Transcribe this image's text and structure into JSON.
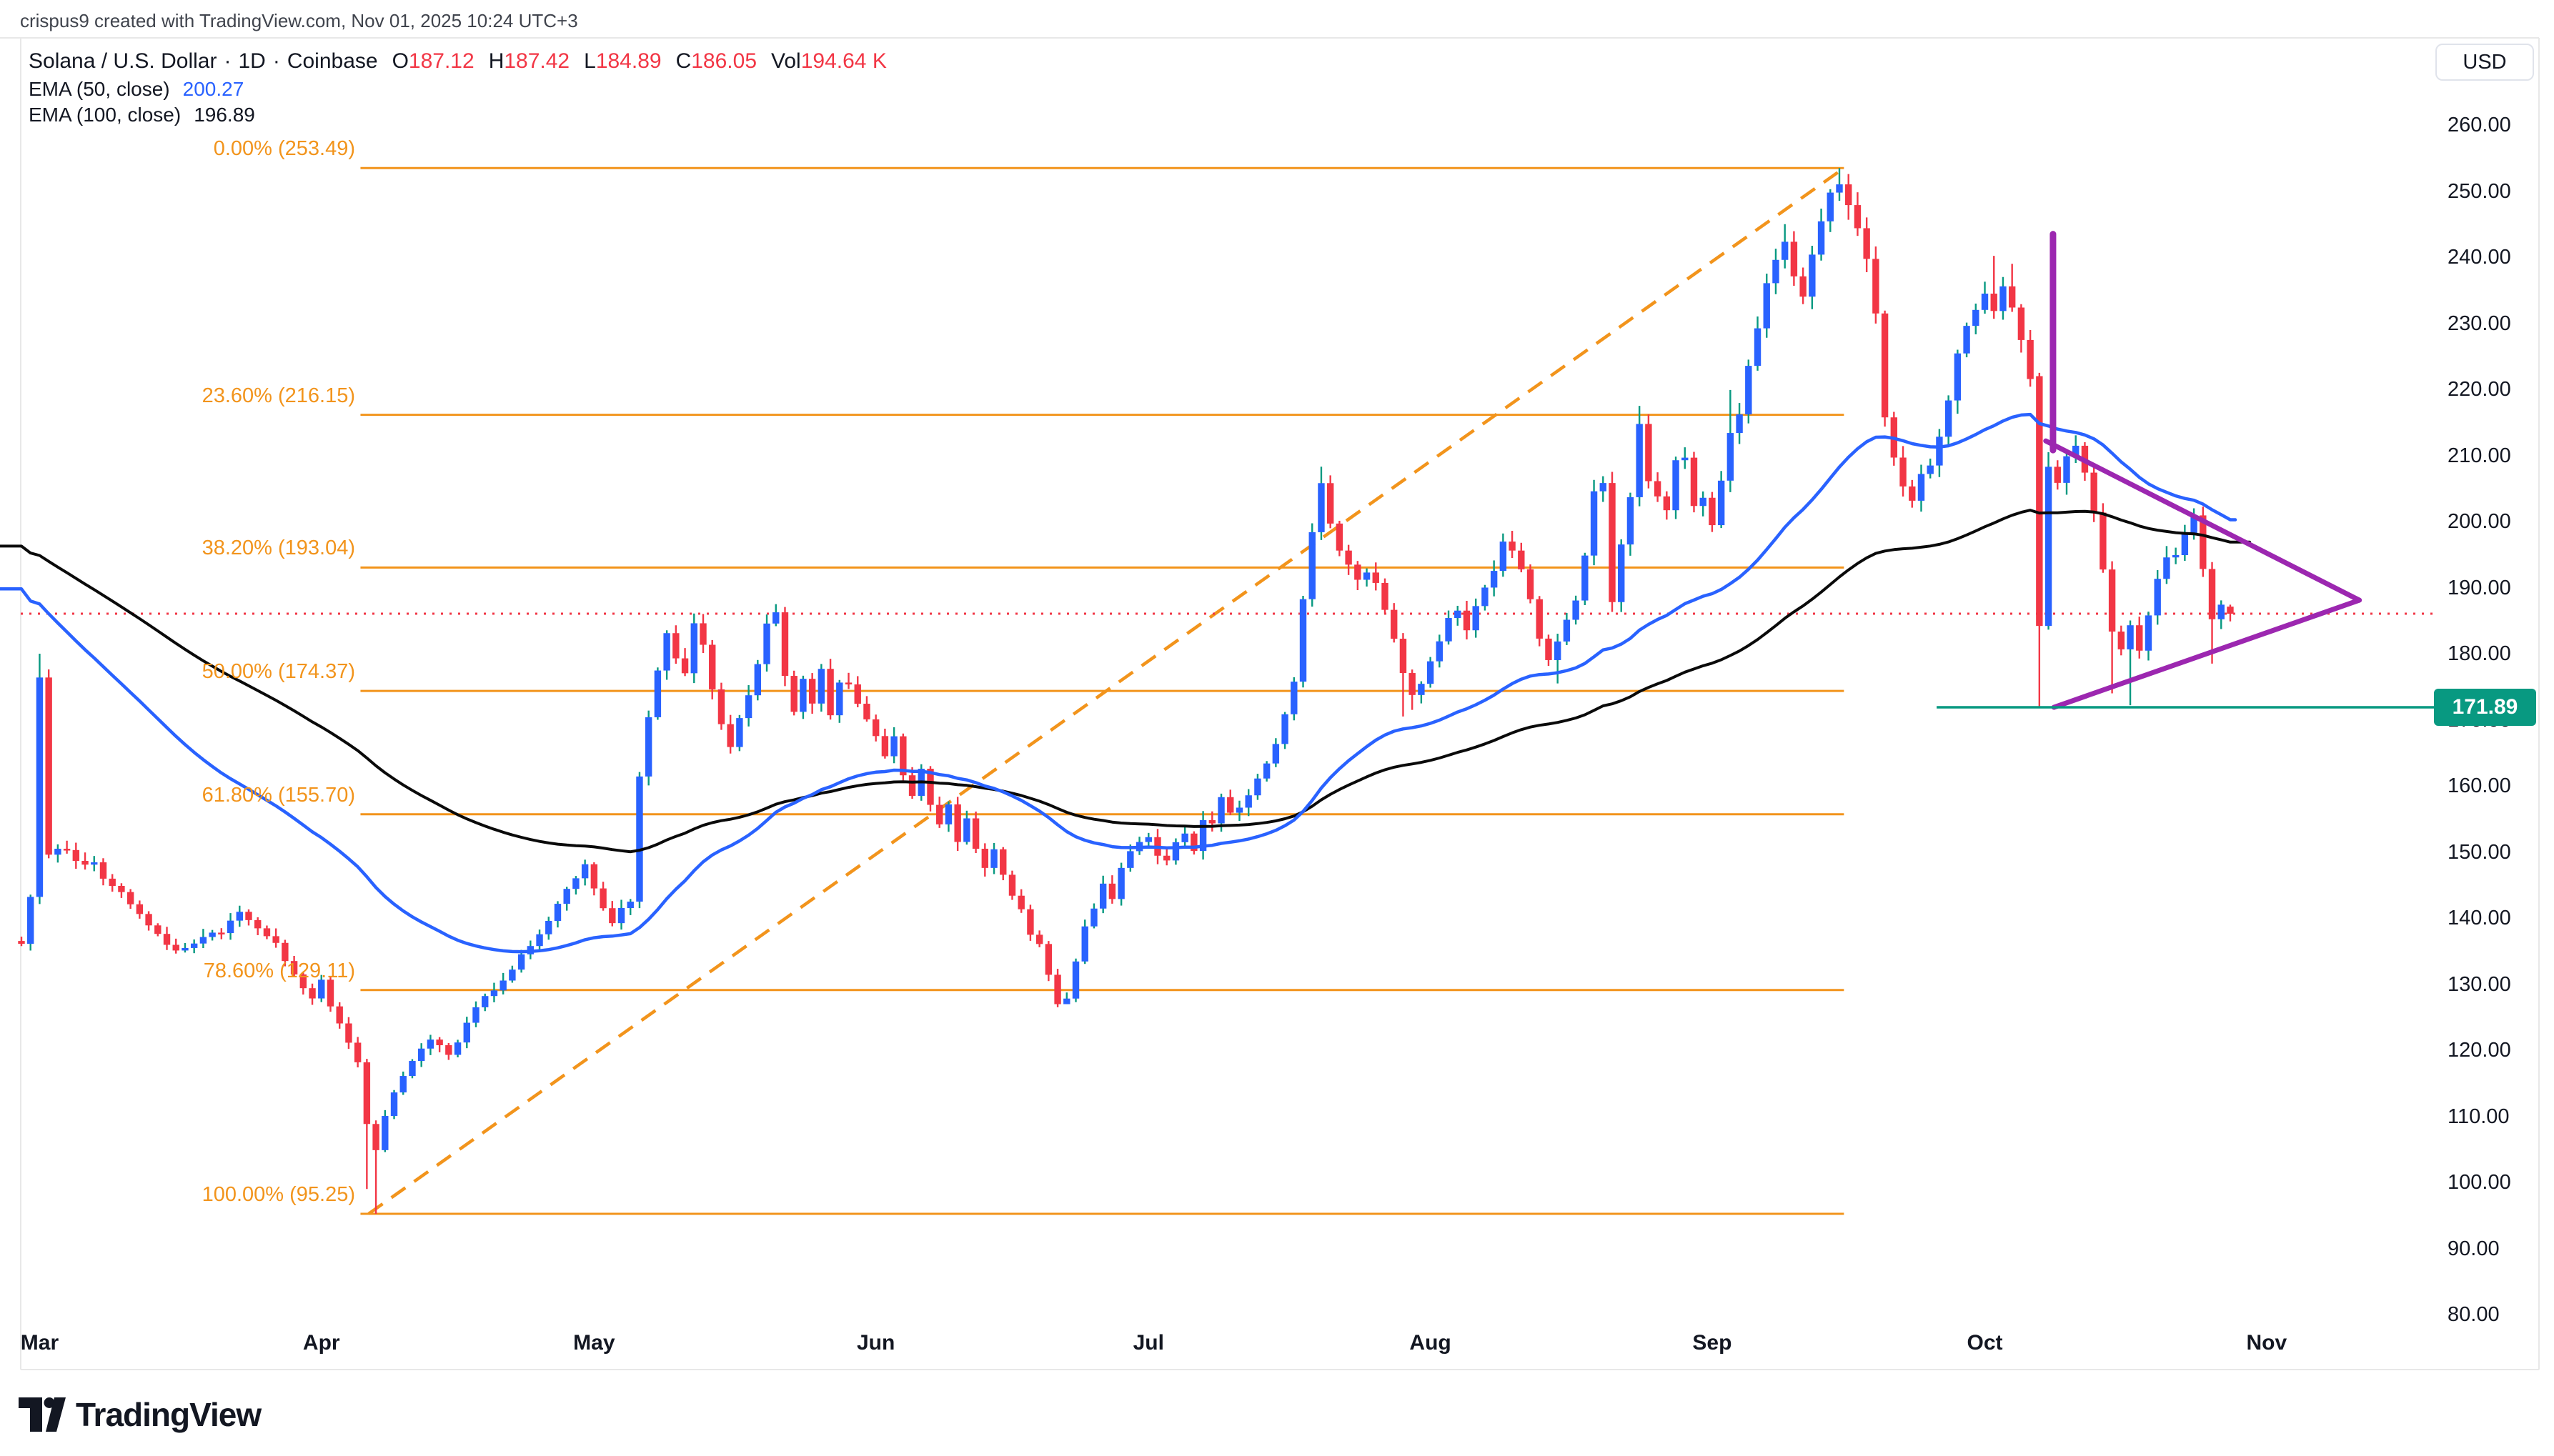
{
  "attribution": "crispus9 created with TradingView.com, Nov 01, 2025 10:24 UTC+3",
  "legend": {
    "title": "Solana / U.S. Dollar",
    "separator": "·",
    "interval": "1D",
    "exchange": "Coinbase",
    "ohlc": [
      {
        "k": "O",
        "v": "187.12"
      },
      {
        "k": "H",
        "v": "187.42"
      },
      {
        "k": "L",
        "v": "184.89"
      },
      {
        "k": "C",
        "v": "186.05"
      },
      {
        "k": "Vol",
        "v": "194.64 K"
      }
    ],
    "indicators": [
      {
        "label": "EMA (50, close)",
        "value": "200.27",
        "color": "#2962FF"
      },
      {
        "label": "EMA (100, close)",
        "value": "196.89",
        "color": "#131722"
      }
    ]
  },
  "axes": {
    "currency_button": "USD",
    "price_ticks": [
      "260.00",
      "250.00",
      "240.00",
      "230.00",
      "220.00",
      "210.00",
      "200.00",
      "190.00",
      "180.00",
      "170.00",
      "160.00",
      "150.00",
      "140.00",
      "130.00",
      "120.00",
      "110.00",
      "100.00",
      "90.00",
      "80.00"
    ],
    "months": [
      "Mar",
      "Apr",
      "May",
      "Jun",
      "Jul",
      "Aug",
      "Sep",
      "Oct",
      "Nov"
    ]
  },
  "price_badge": {
    "text": "171.89"
  },
  "footer_logo_text": "TradingView",
  "colors": {
    "up_body": "#2962FF",
    "up_wick": "#089981",
    "down": "#F23645",
    "ema50": "#2962FF",
    "ema100": "#0A0A0A",
    "fib": "#F2941C",
    "drawing_purple": "#9C27B0",
    "support_teal": "#089981",
    "last_price": "#F23645",
    "frame": "#E8E8E8"
  },
  "chart_data": {
    "type": "candlestick",
    "title": "Solana / U.S. Dollar · 1D · Coinbase",
    "ylabel": "USD",
    "y_range": [
      80,
      260
    ],
    "grid": false,
    "last_candle": {
      "open": 187.12,
      "high": 187.42,
      "low": 184.89,
      "close": 186.05,
      "volume": "194.64 K"
    },
    "ema": [
      {
        "period": 50,
        "value": 200.27
      },
      {
        "period": 100,
        "value": 196.89
      }
    ],
    "fib_levels": [
      {
        "label": "0.00% (253.49)",
        "pct": 0.0,
        "price": 253.49
      },
      {
        "label": "23.60% (216.15)",
        "pct": 23.6,
        "price": 216.15
      },
      {
        "label": "38.20% (193.04)",
        "pct": 38.2,
        "price": 193.04
      },
      {
        "label": "50.00% (174.37)",
        "pct": 50.0,
        "price": 174.37
      },
      {
        "label": "61.80% (155.70)",
        "pct": 61.8,
        "price": 155.7
      },
      {
        "label": "78.60% (129.11)",
        "pct": 78.6,
        "price": 129.11
      },
      {
        "label": "100.00% (95.25)",
        "pct": 100.0,
        "price": 95.25
      }
    ],
    "fib_day_span": [
      37.3,
      200.5
    ],
    "trend_dashed_line": {
      "from": {
        "day": 38.2,
        "price": 95.25
      },
      "to": {
        "day": 200.5,
        "price": 253.49
      }
    },
    "support_line": {
      "price": 171.89,
      "from_day": 210.7,
      "extend_right": true
    },
    "last_price_line": {
      "price": 186.05
    },
    "triangle": {
      "vertical": {
        "day": 223.5,
        "price_top": 243.5,
        "price_bottom": 210.8
      },
      "descending": {
        "from": {
          "day": 222.7,
          "price": 212.2
        },
        "to": {
          "day": 257.2,
          "price": 188.1
        }
      },
      "ascending": {
        "from": {
          "day": 223.6,
          "price": 171.89
        },
        "to": {
          "day": 257.2,
          "price": 188.1
        }
      }
    },
    "months": [
      "Mar",
      "Apr",
      "May",
      "Jun",
      "Jul",
      "Aug",
      "Sep",
      "Oct",
      "Nov"
    ],
    "month_days": [
      2,
      33,
      63,
      94,
      124,
      155,
      186,
      216,
      247
    ],
    "num_candles": 244,
    "ema_render": {
      "start50": 192,
      "start100": 197.5,
      "end50": 200.27,
      "end100": 196.89
    },
    "close_keyframes": [
      [
        0,
        136
      ],
      [
        1,
        143
      ],
      [
        2,
        177
      ],
      [
        3,
        149
      ],
      [
        4,
        151
      ],
      [
        6,
        149
      ],
      [
        8,
        148
      ],
      [
        10,
        145
      ],
      [
        12,
        142
      ],
      [
        14,
        139
      ],
      [
        16,
        136
      ],
      [
        18,
        135
      ],
      [
        20,
        137
      ],
      [
        22,
        138
      ],
      [
        24,
        141
      ],
      [
        26,
        139
      ],
      [
        28,
        136
      ],
      [
        30,
        131
      ],
      [
        32,
        128
      ],
      [
        33,
        131
      ],
      [
        34,
        127
      ],
      [
        35,
        124
      ],
      [
        36,
        121
      ],
      [
        37,
        118
      ],
      [
        38,
        109
      ],
      [
        39,
        105
      ],
      [
        40,
        110
      ],
      [
        41,
        114
      ],
      [
        43,
        118
      ],
      [
        45,
        122
      ],
      [
        47,
        119
      ],
      [
        49,
        124
      ],
      [
        51,
        128
      ],
      [
        53,
        131
      ],
      [
        55,
        134
      ],
      [
        57,
        138
      ],
      [
        59,
        142
      ],
      [
        61,
        146
      ],
      [
        62,
        148
      ],
      [
        63,
        144
      ],
      [
        64,
        141
      ],
      [
        65,
        139
      ],
      [
        66,
        141
      ],
      [
        67,
        143
      ],
      [
        68,
        162
      ],
      [
        69,
        170
      ],
      [
        70,
        177
      ],
      [
        71,
        183
      ],
      [
        72,
        180
      ],
      [
        73,
        177
      ],
      [
        74,
        184
      ],
      [
        75,
        181
      ],
      [
        76,
        174
      ],
      [
        77,
        169
      ],
      [
        78,
        166
      ],
      [
        79,
        170
      ],
      [
        80,
        174
      ],
      [
        81,
        179
      ],
      [
        82,
        184
      ],
      [
        83,
        186
      ],
      [
        84,
        177
      ],
      [
        85,
        171
      ],
      [
        86,
        176
      ],
      [
        87,
        173
      ],
      [
        88,
        177
      ],
      [
        89,
        171
      ],
      [
        90,
        175
      ],
      [
        91,
        176
      ],
      [
        92,
        172
      ],
      [
        93,
        170
      ],
      [
        94,
        168
      ],
      [
        95,
        165
      ],
      [
        96,
        167
      ],
      [
        97,
        162
      ],
      [
        98,
        159
      ],
      [
        99,
        162
      ],
      [
        100,
        157
      ],
      [
        101,
        154
      ],
      [
        102,
        157
      ],
      [
        103,
        152
      ],
      [
        104,
        155
      ],
      [
        105,
        150
      ],
      [
        106,
        147
      ],
      [
        107,
        150
      ],
      [
        108,
        146
      ],
      [
        109,
        143
      ],
      [
        110,
        141
      ],
      [
        111,
        137
      ],
      [
        112,
        136
      ],
      [
        113,
        131
      ],
      [
        114,
        127
      ],
      [
        115,
        128
      ],
      [
        116,
        133
      ],
      [
        117,
        139
      ],
      [
        118,
        142
      ],
      [
        119,
        145
      ],
      [
        120,
        143
      ],
      [
        121,
        148
      ],
      [
        122,
        150
      ],
      [
        123,
        151
      ],
      [
        124,
        152
      ],
      [
        125,
        150
      ],
      [
        126,
        149
      ],
      [
        127,
        151
      ],
      [
        128,
        153
      ],
      [
        129,
        150
      ],
      [
        130,
        155
      ],
      [
        131,
        154
      ],
      [
        132,
        158
      ],
      [
        133,
        156
      ],
      [
        134,
        157
      ],
      [
        135,
        159
      ],
      [
        136,
        161
      ],
      [
        137,
        164
      ],
      [
        138,
        167
      ],
      [
        139,
        171
      ],
      [
        140,
        176
      ],
      [
        141,
        188
      ],
      [
        142,
        199
      ],
      [
        143,
        205.5
      ],
      [
        144,
        200
      ],
      [
        145,
        196
      ],
      [
        146,
        193
      ],
      [
        147,
        191
      ],
      [
        148,
        193
      ],
      [
        149,
        191
      ],
      [
        150,
        187
      ],
      [
        151,
        183
      ],
      [
        152,
        177
      ],
      [
        153,
        174
      ],
      [
        154,
        176
      ],
      [
        155,
        179
      ],
      [
        156,
        182
      ],
      [
        157,
        185
      ],
      [
        158,
        186
      ],
      [
        159,
        184
      ],
      [
        160,
        187
      ],
      [
        161,
        190
      ],
      [
        162,
        193
      ],
      [
        163,
        197
      ],
      [
        164,
        196
      ],
      [
        165,
        193
      ],
      [
        166,
        188
      ],
      [
        167,
        183
      ],
      [
        168,
        179
      ],
      [
        169,
        182
      ],
      [
        170,
        185
      ],
      [
        171,
        188
      ],
      [
        172,
        195
      ],
      [
        173,
        204
      ],
      [
        174,
        206
      ],
      [
        175,
        188
      ],
      [
        176,
        196
      ],
      [
        177,
        203
      ],
      [
        178,
        214
      ],
      [
        179,
        206
      ],
      [
        180,
        204
      ],
      [
        181,
        201
      ],
      [
        182,
        209
      ],
      [
        183,
        210
      ],
      [
        184,
        203
      ],
      [
        185,
        204
      ],
      [
        186,
        200
      ],
      [
        187,
        206
      ],
      [
        188,
        214
      ],
      [
        189,
        217
      ],
      [
        190,
        224
      ],
      [
        191,
        229
      ],
      [
        192,
        236
      ],
      [
        193,
        239
      ],
      [
        194,
        243
      ],
      [
        195,
        238
      ],
      [
        196,
        234
      ],
      [
        197,
        240
      ],
      [
        198,
        245
      ],
      [
        199,
        249
      ],
      [
        200,
        251
      ],
      [
        201,
        248
      ],
      [
        202,
        244
      ],
      [
        203,
        240
      ],
      [
        204,
        232
      ],
      [
        205,
        216
      ],
      [
        206,
        210
      ],
      [
        207,
        206
      ],
      [
        208,
        203
      ],
      [
        209,
        207
      ],
      [
        210,
        209
      ],
      [
        211,
        213
      ],
      [
        212,
        218
      ],
      [
        213,
        225
      ],
      [
        214,
        229
      ],
      [
        215,
        232
      ],
      [
        216,
        235
      ],
      [
        217,
        232
      ],
      [
        218,
        236
      ],
      [
        219,
        232
      ],
      [
        220,
        228
      ],
      [
        221,
        222
      ],
      [
        222,
        184.5
      ],
      [
        223,
        209
      ],
      [
        224,
        206
      ],
      [
        225,
        210
      ],
      [
        226,
        211
      ],
      [
        227,
        208
      ],
      [
        228,
        202
      ],
      [
        229,
        193
      ],
      [
        230,
        183
      ],
      [
        231,
        180
      ],
      [
        232,
        184
      ],
      [
        233,
        181
      ],
      [
        234,
        186
      ],
      [
        235,
        192
      ],
      [
        236,
        194
      ],
      [
        237,
        195.5
      ],
      [
        238,
        198
      ],
      [
        239,
        200.5
      ],
      [
        240,
        192.5
      ],
      [
        241,
        185
      ],
      [
        242,
        187
      ],
      [
        243,
        186.05
      ]
    ],
    "overrides": {
      "2": {
        "high": 180
      },
      "38": {
        "low": 99
      },
      "39": {
        "low": 95.25
      },
      "83": {
        "high": 187.5
      },
      "114": {
        "low": 126.5
      },
      "115": {
        "low": 127
      },
      "143": {
        "high": 208.3
      },
      "152": {
        "low": 170.5
      },
      "153": {
        "low": 171.5
      },
      "169": {
        "low": 175.5
      },
      "178": {
        "high": 217.5
      },
      "188": {
        "high": 219.9
      },
      "194": {
        "high": 245
      },
      "200": {
        "high": 253.49
      },
      "209": {
        "low": 201.5
      },
      "217": {
        "high": 240.2
      },
      "219": {
        "high": 239
      },
      "222": {
        "open": 222,
        "low": 171.9
      },
      "223": {
        "high": 210.5
      },
      "230": {
        "low": 174
      },
      "232": {
        "low": 172.2
      },
      "239": {
        "high": 202
      },
      "241": {
        "low": 178.5
      },
      "243": {
        "open": 187.12,
        "high": 187.42,
        "low": 184.89,
        "close": 186.05
      }
    }
  }
}
